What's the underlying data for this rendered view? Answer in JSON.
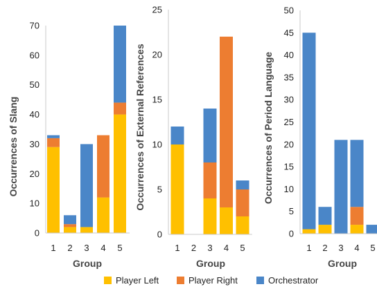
{
  "colors": {
    "player_left": "#FFC000",
    "player_right": "#ED7D31",
    "orchestrator": "#4A86C8",
    "axis": "#c8c8c8"
  },
  "legend": [
    {
      "name": "Player Left",
      "color": "#FFC000"
    },
    {
      "name": "Player Right",
      "color": "#ED7D31"
    },
    {
      "name": "Orchestrator",
      "color": "#4A86C8"
    }
  ],
  "chart_data": [
    {
      "type": "bar",
      "stacked": true,
      "categories": [
        "1",
        "2",
        "3",
        "4",
        "5"
      ],
      "xlabel": "Group",
      "ylabel": "Occurrences of Slang",
      "ylim": [
        0,
        70
      ],
      "yticks": [
        "0",
        "10",
        "20",
        "30",
        "40",
        "50",
        "60",
        "70"
      ],
      "series": [
        {
          "name": "Player Left",
          "values": [
            29,
            2,
            2,
            12,
            40
          ]
        },
        {
          "name": "Player Right",
          "values": [
            3,
            1,
            0,
            21,
            4
          ]
        },
        {
          "name": "Orchestrator",
          "values": [
            1,
            3,
            28,
            0,
            26
          ]
        }
      ]
    },
    {
      "type": "bar",
      "stacked": true,
      "categories": [
        "1",
        "2",
        "3",
        "4",
        "5"
      ],
      "xlabel": "Group",
      "ylabel": "Occurrences of External References",
      "ylim": [
        0,
        25
      ],
      "yticks": [
        "0",
        "5",
        "10",
        "15",
        "20",
        "25"
      ],
      "series": [
        {
          "name": "Player Left",
          "values": [
            10,
            0,
            4,
            3,
            2
          ]
        },
        {
          "name": "Player Right",
          "values": [
            0,
            0,
            4,
            19,
            3
          ]
        },
        {
          "name": "Orchestrator",
          "values": [
            2,
            0,
            6,
            0,
            1
          ]
        }
      ]
    },
    {
      "type": "bar",
      "stacked": true,
      "categories": [
        "1",
        "2",
        "3",
        "4",
        "5"
      ],
      "xlabel": "Group",
      "ylabel": "Occurrences of Period Language",
      "ylim": [
        0,
        50
      ],
      "yticks": [
        "0",
        "5",
        "10",
        "15",
        "20",
        "25",
        "30",
        "35",
        "40",
        "45",
        "50"
      ],
      "series": [
        {
          "name": "Player Left",
          "values": [
            1,
            2,
            0,
            2,
            0
          ]
        },
        {
          "name": "Player Right",
          "values": [
            0,
            0,
            0,
            4,
            0
          ]
        },
        {
          "name": "Orchestrator",
          "values": [
            44,
            4,
            21,
            15,
            2
          ]
        }
      ]
    }
  ]
}
